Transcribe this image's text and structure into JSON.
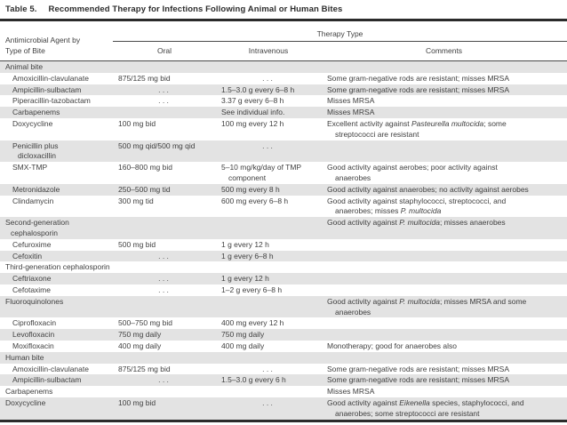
{
  "colors": {
    "shaded_row": "#e3e3e3",
    "rule_thick": "#2b2b2b",
    "rule_thin": "#4a4a4a",
    "text": "#3f3f3f",
    "background": "#ffffff"
  },
  "title": {
    "label": "Table 5.",
    "text": "Recommended Therapy for Infections Following Animal or Human Bites"
  },
  "header": {
    "col1": "Antimicrobial Agent by\nType of Bite",
    "spanner": "Therapy Type",
    "cols": [
      "Oral",
      "Intravenous",
      "Comments"
    ]
  },
  "table": {
    "ellipsis": ". . .",
    "rows": [
      {
        "kind": "section",
        "indent": false,
        "shaded": true,
        "agent": "Animal bite",
        "oral": "",
        "iv": "",
        "comments": []
      },
      {
        "kind": "item",
        "indent": true,
        "shaded": false,
        "agent": "Amoxicillin-clavulanate",
        "oral": "875/125 mg bid",
        "iv": ". . .",
        "comments": [
          {
            "t": "Some gram-negative rods are resistant; misses MRSA"
          }
        ]
      },
      {
        "kind": "item",
        "indent": true,
        "shaded": true,
        "agent": "Ampicillin-sulbactam",
        "oral": ". . .",
        "iv": "1.5–3.0 g every 6–8 h",
        "comments": [
          {
            "t": "Some gram-negative rods are resistant; misses MRSA"
          }
        ]
      },
      {
        "kind": "item",
        "indent": true,
        "shaded": false,
        "agent": "Piperacillin-tazobactam",
        "oral": ". . .",
        "iv": "3.37 g every 6–8 h",
        "comments": [
          {
            "t": "Misses MRSA"
          }
        ]
      },
      {
        "kind": "item",
        "indent": true,
        "shaded": true,
        "agent": "Carbapenems",
        "oral": "",
        "iv": "See individual info.",
        "comments": [
          {
            "t": "Misses MRSA"
          }
        ]
      },
      {
        "kind": "item",
        "indent": true,
        "shaded": false,
        "agent": "Doxycycline",
        "oral": "100 mg bid",
        "iv": "100 mg every 12 h",
        "comments": [
          {
            "t": "Excellent activity against "
          },
          {
            "t": "Pasteurella multocida",
            "i": true
          },
          {
            "t": "; some\nstreptococci are resistant"
          }
        ]
      },
      {
        "kind": "item",
        "indent": true,
        "shaded": true,
        "agent": "Penicillin plus\ndicloxacillin",
        "oral": "500 mg qid/500 mg qid",
        "iv": ". . .",
        "comments": []
      },
      {
        "kind": "item",
        "indent": true,
        "shaded": false,
        "agent": "SMX-TMP",
        "oral": "160–800 mg bid",
        "iv": "5–10 mg/kg/day of TMP\ncomponent",
        "comments": [
          {
            "t": "Good activity against aerobes; poor activity against\nanaerobes"
          }
        ]
      },
      {
        "kind": "item",
        "indent": true,
        "shaded": true,
        "agent": "Metronidazole",
        "oral": "250–500 mg tid",
        "iv": "500 mg every 8 h",
        "comments": [
          {
            "t": "Good activity against anaerobes; no activity against aerobes"
          }
        ]
      },
      {
        "kind": "item",
        "indent": true,
        "shaded": false,
        "agent": "Clindamycin",
        "oral": "300 mg tid",
        "iv": "600 mg every 6–8 h",
        "comments": [
          {
            "t": "Good activity against staphylococci, streptococci, and\nanaerobes; misses "
          },
          {
            "t": "P. multocida",
            "i": true
          }
        ]
      },
      {
        "kind": "section",
        "indent": false,
        "shaded": true,
        "agent": "Second-generation\ncephalosporin",
        "oral": "",
        "iv": "",
        "comments": [
          {
            "t": "Good activity against "
          },
          {
            "t": "P. multocida",
            "i": true
          },
          {
            "t": "; misses anaerobes"
          }
        ]
      },
      {
        "kind": "item",
        "indent": true,
        "shaded": false,
        "agent": "Cefuroxime",
        "oral": "500 mg bid",
        "iv": "1 g every 12 h",
        "comments": []
      },
      {
        "kind": "item",
        "indent": true,
        "shaded": true,
        "agent": "Cefoxitin",
        "oral": ". . .",
        "iv": "1 g every 6–8 h",
        "comments": []
      },
      {
        "kind": "section",
        "indent": false,
        "shaded": false,
        "agent": "Third-generation cephalosporin",
        "oral": "",
        "iv": "",
        "comments": []
      },
      {
        "kind": "item",
        "indent": true,
        "shaded": true,
        "agent": "Ceftriaxone",
        "oral": ". . .",
        "iv": "1 g every 12 h",
        "comments": []
      },
      {
        "kind": "item",
        "indent": true,
        "shaded": false,
        "agent": "Cefotaxime",
        "oral": ". . .",
        "iv": "1–2 g every 6–8 h",
        "comments": []
      },
      {
        "kind": "section",
        "indent": false,
        "shaded": true,
        "agent": "Fluoroquinolones",
        "oral": "",
        "iv": "",
        "comments": [
          {
            "t": "Good activity against "
          },
          {
            "t": "P. multocida",
            "i": true
          },
          {
            "t": "; misses MRSA and some\nanaerobes"
          }
        ]
      },
      {
        "kind": "item",
        "indent": true,
        "shaded": false,
        "agent": "Ciprofloxacin",
        "oral": "500–750 mg bid",
        "iv": "400 mg every 12 h",
        "comments": []
      },
      {
        "kind": "item",
        "indent": true,
        "shaded": true,
        "agent": "Levofloxacin",
        "oral": "750 mg daily",
        "iv": "750 mg daily",
        "comments": []
      },
      {
        "kind": "item",
        "indent": true,
        "shaded": false,
        "agent": "Moxifloxacin",
        "oral": "400 mg daily",
        "iv": "400 mg daily",
        "comments": [
          {
            "t": "Monotherapy; good for anaerobes also"
          }
        ]
      },
      {
        "kind": "section",
        "indent": false,
        "shaded": true,
        "agent": "Human bite",
        "oral": "",
        "iv": "",
        "comments": []
      },
      {
        "kind": "item",
        "indent": true,
        "shaded": false,
        "agent": "Amoxicillin-clavulanate",
        "oral": "875/125 mg bid",
        "iv": ". . .",
        "comments": [
          {
            "t": "Some gram-negative rods are resistant; misses MRSA"
          }
        ]
      },
      {
        "kind": "item",
        "indent": true,
        "shaded": true,
        "agent": "Ampicillin-sulbactam",
        "oral": ". . .",
        "iv": "1.5–3.0 g every 6 h",
        "comments": [
          {
            "t": "Some gram-negative rods are resistant; misses MRSA"
          }
        ]
      },
      {
        "kind": "item",
        "indent": false,
        "shaded": false,
        "agent": "Carbapenems",
        "oral": "",
        "iv": "",
        "comments": [
          {
            "t": "Misses MRSA"
          }
        ]
      },
      {
        "kind": "item",
        "indent": false,
        "shaded": true,
        "agent": "Doxycycline",
        "oral": "100 mg bid",
        "iv": ". . .",
        "comments": [
          {
            "t": "Good activity against "
          },
          {
            "t": "Eikenella",
            "i": true
          },
          {
            "t": " species, staphylococci, and\nanaerobes; some streptococci are resistant"
          }
        ]
      }
    ]
  }
}
